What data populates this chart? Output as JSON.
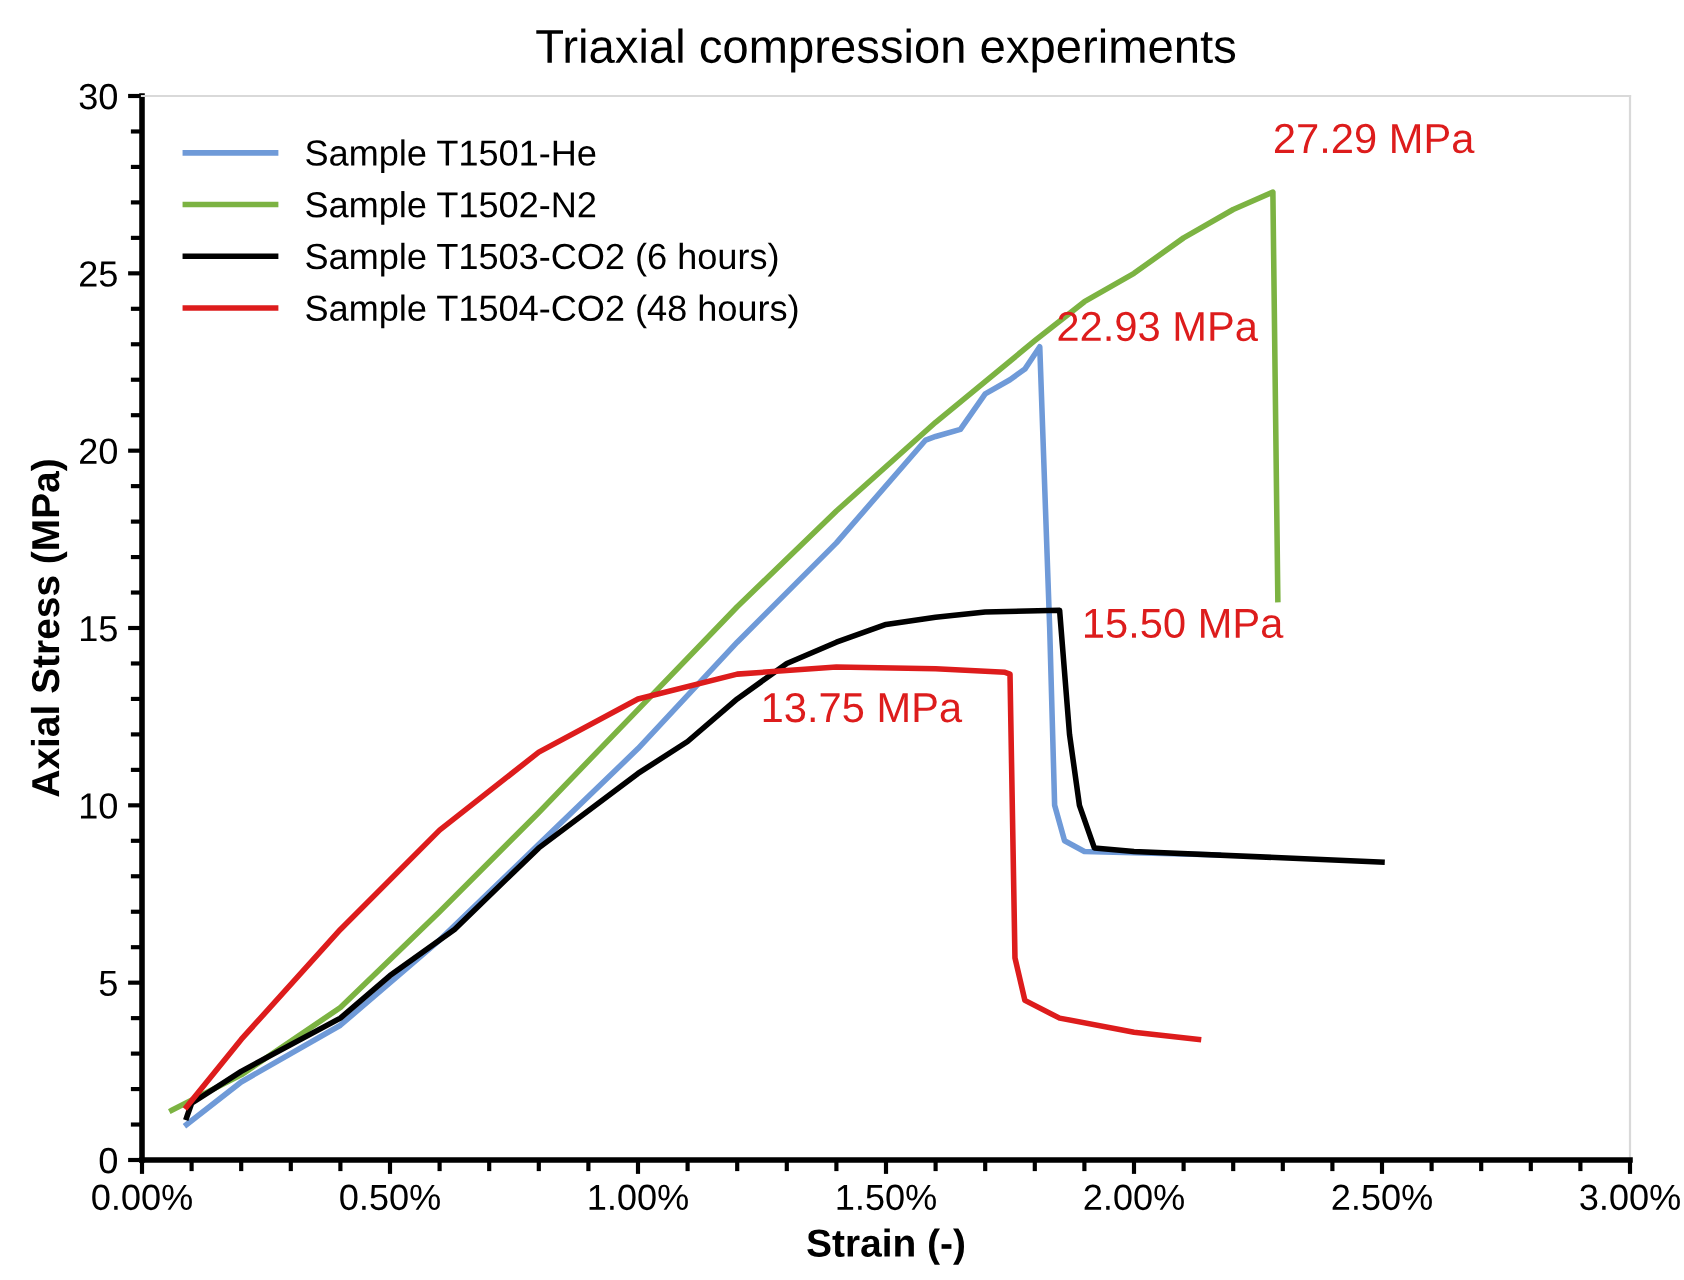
{
  "chart_data": {
    "type": "line",
    "title": "Triaxial compression experiments",
    "xlabel": "Strain (-)",
    "ylabel": "Axial Stress (MPa)",
    "xlim": [
      0,
      3
    ],
    "ylim": [
      0,
      30
    ],
    "xticks": [
      {
        "value": 0,
        "label": "0.00%"
      },
      {
        "value": 0.1,
        "label": null
      },
      {
        "value": 0.2,
        "label": null
      },
      {
        "value": 0.3,
        "label": null
      },
      {
        "value": 0.4,
        "label": null
      },
      {
        "value": 0.5,
        "label": "0.50%"
      },
      {
        "value": 0.6,
        "label": null
      },
      {
        "value": 0.7,
        "label": null
      },
      {
        "value": 0.8,
        "label": null
      },
      {
        "value": 0.9,
        "label": null
      },
      {
        "value": 1,
        "label": "1.00%"
      },
      {
        "value": 1.1,
        "label": null
      },
      {
        "value": 1.2,
        "label": null
      },
      {
        "value": 1.3,
        "label": null
      },
      {
        "value": 1.4,
        "label": null
      },
      {
        "value": 1.5,
        "label": "1.50%"
      },
      {
        "value": 1.6,
        "label": null
      },
      {
        "value": 1.7,
        "label": null
      },
      {
        "value": 1.8,
        "label": null
      },
      {
        "value": 1.9,
        "label": null
      },
      {
        "value": 2,
        "label": "2.00%"
      },
      {
        "value": 2.1,
        "label": null
      },
      {
        "value": 2.2,
        "label": null
      },
      {
        "value": 2.3,
        "label": null
      },
      {
        "value": 2.4,
        "label": null
      },
      {
        "value": 2.5,
        "label": "2.50%"
      },
      {
        "value": 2.6,
        "label": null
      },
      {
        "value": 2.7,
        "label": null
      },
      {
        "value": 2.8,
        "label": null
      },
      {
        "value": 2.9,
        "label": null
      },
      {
        "value": 3,
        "label": "3.00%"
      }
    ],
    "yticks": [
      0,
      {
        "value": 1,
        "label": null
      },
      {
        "value": 2,
        "label": null
      },
      {
        "value": 3,
        "label": null
      },
      {
        "value": 4,
        "label": null
      },
      5,
      {
        "value": 6,
        "label": null
      },
      {
        "value": 7,
        "label": null
      },
      {
        "value": 8,
        "label": null
      },
      {
        "value": 9,
        "label": null
      },
      10,
      {
        "value": 11,
        "label": null
      },
      {
        "value": 12,
        "label": null
      },
      {
        "value": 13,
        "label": null
      },
      {
        "value": 14,
        "label": null
      },
      15,
      {
        "value": 16,
        "label": null
      },
      {
        "value": 17,
        "label": null
      },
      {
        "value": 18,
        "label": null
      },
      {
        "value": 19,
        "label": null
      },
      20,
      {
        "value": 21,
        "label": null
      },
      {
        "value": 22,
        "label": null
      },
      {
        "value": 23,
        "label": null
      },
      {
        "value": 24,
        "label": null
      },
      25,
      {
        "value": 26,
        "label": null
      },
      {
        "value": 27,
        "label": null
      },
      {
        "value": 28,
        "label": null
      },
      {
        "value": 29,
        "label": null
      },
      30
    ],
    "grid": false,
    "legend": "top left",
    "marker": "none",
    "line_style": "solid",
    "series": [
      {
        "name": "Sample T1501-He",
        "color": "#6f9ad8",
        "x": [
          0.09,
          0.2,
          0.4,
          0.6,
          0.8,
          1.0,
          1.2,
          1.4,
          1.58,
          1.6,
          1.65,
          1.7,
          1.75,
          1.78,
          1.81,
          1.83,
          1.84,
          1.86,
          1.9,
          2.17
        ],
        "values": [
          1.0,
          2.2,
          3.8,
          6.2,
          8.9,
          11.6,
          14.6,
          17.4,
          20.3,
          20.4,
          20.6,
          21.6,
          22.0,
          22.3,
          22.93,
          15.0,
          10.0,
          9.0,
          8.7,
          8.6
        ]
      },
      {
        "name": "Sample T1502-N2",
        "color": "#7cb342",
        "x": [
          0.06,
          0.2,
          0.4,
          0.6,
          0.8,
          1.0,
          1.2,
          1.4,
          1.6,
          1.8,
          1.9,
          2.0,
          2.1,
          2.2,
          2.28,
          2.29
        ],
        "values": [
          1.4,
          2.4,
          4.3,
          7.0,
          9.8,
          12.7,
          15.6,
          18.3,
          20.8,
          23.1,
          24.2,
          25.0,
          26.0,
          26.8,
          27.29,
          15.8
        ]
      },
      {
        "name": "Sample T1503-CO2 (6 hours)",
        "color": "#000000",
        "x": [
          0.09,
          0.1,
          0.2,
          0.4,
          0.5,
          0.63,
          0.8,
          1.0,
          1.1,
          1.2,
          1.3,
          1.4,
          1.5,
          1.6,
          1.7,
          1.85,
          1.87,
          1.89,
          1.92,
          2.0,
          2.5
        ],
        "values": [
          1.2,
          1.6,
          2.5,
          4.0,
          5.2,
          6.5,
          8.8,
          10.9,
          11.8,
          13.0,
          14.0,
          14.6,
          15.1,
          15.3,
          15.45,
          15.5,
          12.0,
          10.0,
          8.8,
          8.7,
          8.4
        ]
      },
      {
        "name": "Sample T1504-CO2 (48 hours)",
        "color": "#dd1c1c",
        "x": [
          0.09,
          0.2,
          0.4,
          0.6,
          0.8,
          1.0,
          1.2,
          1.4,
          1.6,
          1.74,
          1.75,
          1.76,
          1.78,
          1.85,
          2.0,
          2.13
        ],
        "values": [
          1.5,
          3.4,
          6.5,
          9.3,
          11.5,
          13.0,
          13.7,
          13.9,
          13.85,
          13.75,
          13.7,
          5.7,
          4.5,
          4.0,
          3.6,
          3.4
        ]
      }
    ],
    "annotations": [
      {
        "text": "22.93 MPa",
        "x": 1.81,
        "y": 22.93
      },
      {
        "text": "27.29 MPa",
        "x": 2.28,
        "y": 27.29
      },
      {
        "text": "15.50 MPa",
        "x": 1.85,
        "y": 15.5
      },
      {
        "text": "13.75 MPa",
        "x": 1.74,
        "y": 13.75
      }
    ]
  }
}
